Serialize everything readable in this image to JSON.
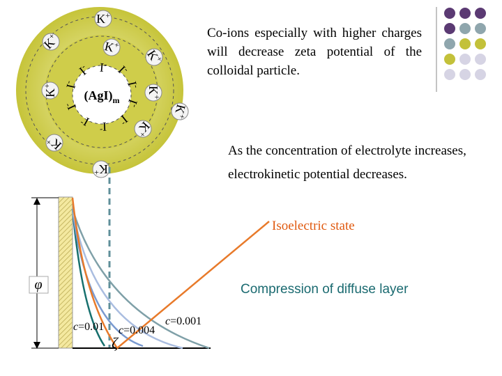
{
  "colloid": {
    "core": "(AgI)",
    "core_subscript": "m",
    "potential_ion": {
      "symbol": "I",
      "charge": "-"
    },
    "counter_ion": {
      "symbol": "K",
      "charge": "+"
    }
  },
  "notes": [
    "Co-ions especially with higher charges will decrease zeta potential of the colloidal particle.",
    "As the concentration of electrolyte increases, electrokinetic potential decreases."
  ],
  "graph": {
    "isoelectric_label": "Isoelectric state",
    "potential_symbol": "φ",
    "compression_label": "Compression of diffuse layer",
    "concentration_labels": [
      {
        "variable": "c",
        "value": "=0.01"
      },
      {
        "variable": "c",
        "value": "=0.004"
      },
      {
        "variable": "c",
        "value": "=0.001"
      }
    ],
    "zeta_symbol": "ζ"
  }
}
